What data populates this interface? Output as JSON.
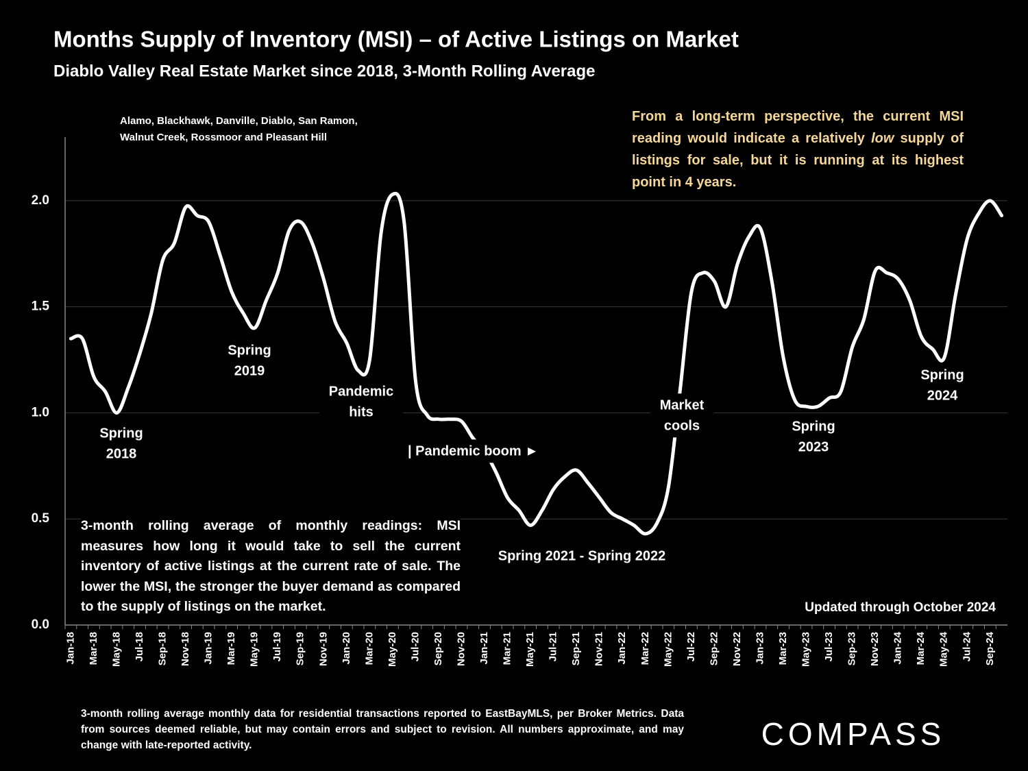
{
  "chart_data": {
    "type": "line",
    "title": "Months Supply of Inventory (MSI) – of Active Listings on Market",
    "subtitle": "Diablo Valley Real Estate Market since 2018, 3-Month Rolling Average",
    "location_note": [
      "Alamo, Blackhawk, Danville, Diablo, San Ramon,",
      "Walnut Creek, Rossmoor and Pleasant Hill"
    ],
    "highlight_note": [
      "From a long-term perspective, the current MSI reading would indicate a relatively ",
      "low",
      " supply of listings for sale, but it is running at its highest point in 4 years."
    ],
    "definition_note": "3-month rolling average of monthly readings: MSI measures how long it would take to sell the current inventory of active listings at the current rate of sale. The lower the MSI, the stronger the buyer demand as compared to the supply of listings on the market.",
    "updated_note": "Updated through October 2024",
    "footnote": "3-month rolling average monthly data for residential transactions reported to EastBayMLS, per Broker Metrics. Data from sources deemed reliable, but may contain errors and subject to revision. All numbers approximate, and may change with late-reported activity.",
    "logo": "COMPASS",
    "annotations": [
      {
        "lines": [
          "Spring",
          "2018"
        ]
      },
      {
        "lines": [
          "Spring",
          "2019"
        ]
      },
      {
        "lines": [
          "Pandemic",
          "hits"
        ]
      },
      {
        "lines": [
          "| Pandemic boom ►"
        ]
      },
      {
        "lines": [
          "Spring 2021 - Spring 2022"
        ]
      },
      {
        "lines": [
          "Market",
          "cools"
        ]
      },
      {
        "lines": [
          "Spring",
          "2023"
        ]
      },
      {
        "lines": [
          "Spring",
          "2024"
        ]
      }
    ],
    "categories": [
      "Jan-18",
      null,
      "Mar-18",
      null,
      "May-18",
      null,
      "Jul-18",
      null,
      "Sep-18",
      null,
      "Nov-18",
      null,
      "Jan-19",
      null,
      "Mar-19",
      null,
      "May-19",
      null,
      "Jul-19",
      null,
      "Sep-19",
      null,
      "Nov-19",
      null,
      "Jan-20",
      null,
      "Mar-20",
      null,
      "May-20",
      null,
      "Jul-20",
      null,
      "Sep-20",
      null,
      "Nov-20",
      null,
      "Jan-21",
      null,
      "Mar-21",
      null,
      "May-21",
      null,
      "Jul-21",
      null,
      "Sep-21",
      null,
      "Nov-21",
      null,
      "Jan-22",
      null,
      "Mar-22",
      null,
      "May-22",
      null,
      "Jul-22",
      null,
      "Sep-22",
      null,
      "Nov-22",
      null,
      "Jan-23",
      null,
      "Mar-23",
      null,
      "May-23",
      null,
      "Jul-23",
      null,
      "Sep-23",
      null,
      "Nov-23",
      null,
      "Jan-24",
      null,
      "Mar-24",
      null,
      "May-24",
      null,
      "Jul-24",
      null,
      "Sep-24",
      null
    ],
    "series": [
      {
        "name": "MSI",
        "color": "#ffffff",
        "values": [
          1.35,
          1.35,
          1.17,
          1.1,
          1.0,
          1.12,
          1.28,
          1.47,
          1.72,
          1.8,
          1.97,
          1.93,
          1.9,
          1.74,
          1.57,
          1.47,
          1.4,
          1.53,
          1.66,
          1.86,
          1.9,
          1.8,
          1.63,
          1.43,
          1.33,
          1.2,
          1.25,
          1.85,
          2.03,
          1.9,
          1.15,
          0.99,
          0.97,
          0.97,
          0.96,
          0.88,
          0.82,
          0.72,
          0.6,
          0.54,
          0.47,
          0.54,
          0.64,
          0.7,
          0.73,
          0.67,
          0.6,
          0.53,
          0.5,
          0.47,
          0.43,
          0.48,
          0.65,
          1.1,
          1.57,
          1.66,
          1.62,
          1.5,
          1.7,
          1.83,
          1.87,
          1.62,
          1.26,
          1.06,
          1.03,
          1.03,
          1.07,
          1.1,
          1.31,
          1.44,
          1.67,
          1.66,
          1.63,
          1.53,
          1.36,
          1.3,
          1.26,
          1.56,
          1.82,
          1.94,
          2.0,
          1.93
        ]
      }
    ],
    "ylim": [
      0,
      2.3
    ],
    "yticks": [
      {
        "value": 0,
        "label": "0.0"
      },
      0.5,
      {
        "value": 1,
        "label": "1.0"
      },
      1.5,
      {
        "value": 2,
        "label": "2.0"
      }
    ],
    "grid": true
  }
}
